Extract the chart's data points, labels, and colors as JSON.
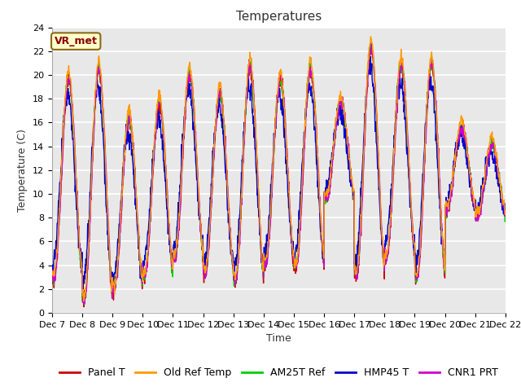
{
  "title": "Temperatures",
  "xlabel": "Time",
  "ylabel": "Temperature (C)",
  "ylim": [
    0,
    24
  ],
  "x_tick_labels": [
    "Dec 7",
    "Dec 8",
    "Dec 9",
    "Dec 10",
    "Dec 11",
    "Dec 12",
    "Dec 13",
    "Dec 14",
    "Dec 15",
    "Dec 16",
    "Dec 17",
    "Dec 18",
    "Dec 19",
    "Dec 20",
    "Dec 21",
    "Dec 22"
  ],
  "annotation_text": "VR_met",
  "annotation_color": "#8B0000",
  "annotation_bg": "#FFFFCC",
  "annotation_edge": "#8B6914",
  "colors": {
    "Panel T": "#cc0000",
    "Old Ref Temp": "#ff9900",
    "AM25T Ref": "#00cc00",
    "HMP45 T": "#0000cc",
    "CNR1 PRT": "#cc00cc"
  },
  "fig_bg": "#ffffff",
  "plot_bg": "#e8e8e8",
  "grid_color": "#ffffff",
  "title_fontsize": 11,
  "label_fontsize": 9,
  "tick_fontsize": 8,
  "legend_fontsize": 9,
  "line_width": 1.0
}
